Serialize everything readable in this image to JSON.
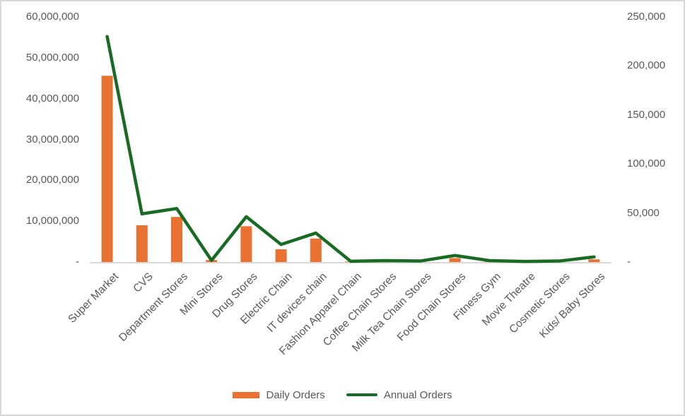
{
  "chart_data": {
    "type": "combo-bar-line",
    "title": "",
    "categories": [
      "Super Market",
      "CVS",
      "Department Stores",
      "Mini Stores",
      "Drug Stores",
      "Electric Chain",
      "IT devices chain",
      "Fashion Apparel Chain",
      "Coffee Chain Stores",
      "Milk Tea Chain Stores",
      "Food Chain Stores",
      "Fitness Gym",
      "Movie Theatre",
      "Cosmetic Stores",
      "Kids/ Baby Stores"
    ],
    "series": [
      {
        "name": "Daily Orders",
        "type": "bar",
        "axis": "right",
        "color": "#E97132",
        "values": [
          190000,
          37500,
          46000,
          2000,
          36500,
          13000,
          24000,
          400,
          1200,
          800,
          4000,
          500,
          300,
          500,
          2700
        ]
      },
      {
        "name": "Annual Orders",
        "type": "line",
        "axis": "left",
        "color": "#196B24",
        "values": [
          55200000,
          11800000,
          13100000,
          400000,
          11100000,
          4300000,
          7100000,
          200000,
          350000,
          250000,
          1600000,
          350000,
          150000,
          250000,
          1250000
        ]
      }
    ],
    "left_axis": {
      "min": 0,
      "max": 60000000,
      "tick_step": 10000000,
      "tick_labels": [
        "-",
        "10,000,000",
        "20,000,000",
        "30,000,000",
        "40,000,000",
        "50,000,000",
        "60,000,000"
      ]
    },
    "right_axis": {
      "min": 0,
      "max": 250000,
      "tick_step": 50000,
      "tick_labels": [
        "-",
        "50,000",
        "100,000",
        "150,000",
        "200,000",
        "250,000"
      ]
    },
    "legend_position": "bottom",
    "grid": false
  },
  "styles": {
    "bar_color": "#E97132",
    "line_color": "#196B24",
    "axis_line_color": "#D9D9D9",
    "tick_label_color": "#595959"
  }
}
